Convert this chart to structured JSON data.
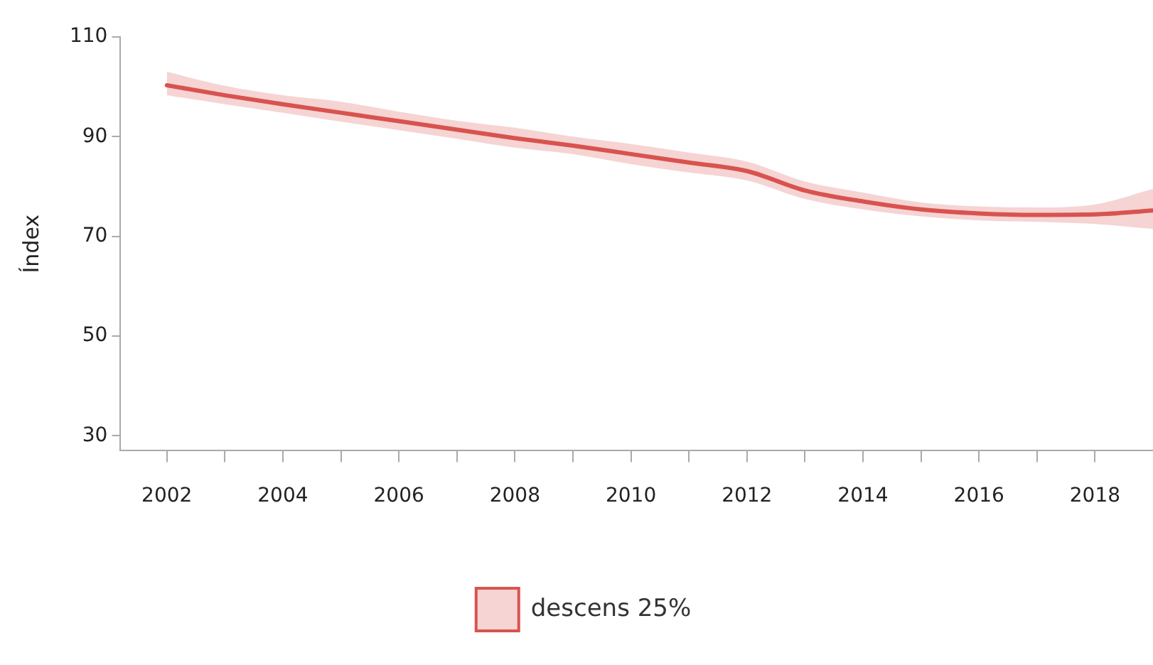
{
  "chart_data": {
    "type": "line",
    "ylabel": "Índex",
    "x": [
      2002,
      2003,
      2004,
      2005,
      2006,
      2007,
      2008,
      2009,
      2010,
      2011,
      2012,
      2013,
      2014,
      2015,
      2016,
      2017,
      2018,
      2019
    ],
    "series": [
      {
        "name": "descens 25%",
        "color": "#d9534f",
        "values": [
          100.3,
          98.3,
          96.5,
          94.8,
          93.1,
          91.4,
          89.7,
          88.2,
          86.5,
          84.8,
          83.1,
          79.2,
          77.0,
          75.4,
          74.6,
          74.3,
          74.4,
          75.2
        ],
        "lower": [
          98.3,
          96.5,
          94.8,
          93.0,
          91.3,
          89.6,
          87.8,
          86.5,
          84.5,
          82.8,
          81.2,
          77.5,
          75.4,
          74.0,
          73.2,
          72.9,
          72.5,
          71.5
        ],
        "upper": [
          103.0,
          100.2,
          98.3,
          97.0,
          95.0,
          93.2,
          91.8,
          90.0,
          88.5,
          86.8,
          85.0,
          81.0,
          78.8,
          76.8,
          76.0,
          75.8,
          76.4,
          79.5
        ]
      }
    ],
    "xlim": [
      2001.2,
      2019
    ],
    "xticks": [
      2002,
      {
        "value": 2003,
        "label": null
      },
      2004,
      {
        "value": 2005,
        "label": null
      },
      2006,
      {
        "value": 2007,
        "label": null
      },
      2008,
      {
        "value": 2009,
        "label": null
      },
      2010,
      {
        "value": 2011,
        "label": null
      },
      2012,
      {
        "value": 2013,
        "label": null
      },
      2014,
      {
        "value": 2015,
        "label": null
      },
      2016,
      {
        "value": 2017,
        "label": null
      },
      2018
    ],
    "ylim": [
      27,
      110
    ],
    "yticks": [
      30,
      50,
      70,
      90,
      110
    ],
    "grid": false,
    "legend": "bottom",
    "marker": "none",
    "line_style": "solid"
  }
}
